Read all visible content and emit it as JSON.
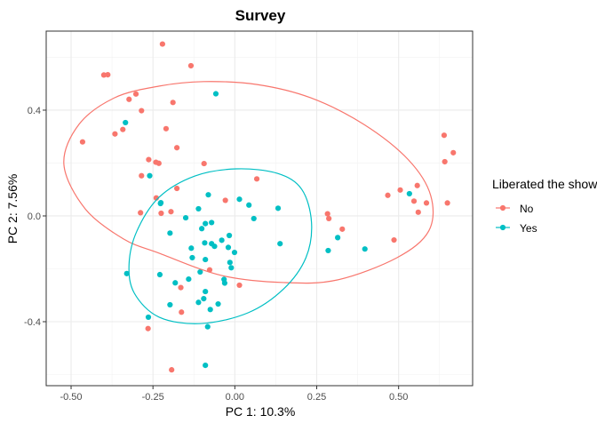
{
  "chart_data": {
    "type": "scatter",
    "title": "Survey",
    "xlabel": "PC 1: 10.3%",
    "ylabel": "PC 2: 7.56%",
    "xlim": [
      -0.576,
      0.726
    ],
    "ylim": [
      -0.642,
      0.699
    ],
    "x_ticks": [
      -0.5,
      -0.25,
      0,
      0.25,
      0.5
    ],
    "x_tick_labels": [
      "-0.50",
      "-0.25",
      "0.00",
      "0.25",
      "0.50"
    ],
    "y_ticks": [
      -0.4,
      0,
      0.4
    ],
    "y_tick_labels": [
      "-0.4",
      "0.0",
      "0.4"
    ],
    "grid": true,
    "legend": {
      "title": "Liberated the show?",
      "position": "right"
    },
    "series": [
      {
        "name": "No",
        "color": "#F8766D",
        "points": [
          [
            -0.221,
            0.65
          ],
          [
            -0.134,
            0.568
          ],
          [
            -0.4,
            0.533
          ],
          [
            -0.388,
            0.534
          ],
          [
            -0.302,
            0.461
          ],
          [
            -0.323,
            0.441
          ],
          [
            -0.189,
            0.429
          ],
          [
            -0.285,
            0.398
          ],
          [
            -0.21,
            0.33
          ],
          [
            -0.366,
            0.31
          ],
          [
            -0.342,
            0.327
          ],
          [
            -0.465,
            0.28
          ],
          [
            -0.177,
            0.258
          ],
          [
            -0.263,
            0.213
          ],
          [
            -0.241,
            0.203
          ],
          [
            -0.232,
            0.199
          ],
          [
            -0.094,
            0.198
          ],
          [
            -0.285,
            0.152
          ],
          [
            -0.177,
            0.104
          ],
          [
            0.067,
            0.14
          ],
          [
            -0.24,
            0.068
          ],
          [
            -0.029,
            0.059
          ],
          [
            -0.288,
            0.012
          ],
          [
            -0.225,
            0.01
          ],
          [
            -0.195,
            0.016
          ],
          [
            -0.077,
            -0.204
          ],
          [
            -0.165,
            -0.271
          ],
          [
            0.014,
            -0.262
          ],
          [
            -0.163,
            -0.364
          ],
          [
            -0.265,
            -0.426
          ],
          [
            -0.193,
            -0.582
          ],
          [
            0.639,
            0.305
          ],
          [
            0.667,
            0.239
          ],
          [
            0.641,
            0.205
          ],
          [
            0.557,
            0.115
          ],
          [
            0.505,
            0.098
          ],
          [
            0.467,
            0.078
          ],
          [
            0.547,
            0.056
          ],
          [
            0.585,
            0.049
          ],
          [
            0.649,
            0.049
          ],
          [
            0.56,
            0.014
          ],
          [
            0.283,
            0.008
          ],
          [
            0.287,
            -0.01
          ],
          [
            0.328,
            -0.05
          ],
          [
            0.486,
            -0.091
          ]
        ],
        "ellipse": [
          [
            -0.522,
            0.195
          ],
          [
            -0.476,
            0.346
          ],
          [
            -0.367,
            0.447
          ],
          [
            -0.231,
            0.491
          ],
          [
            -0.095,
            0.508
          ],
          [
            0.068,
            0.497
          ],
          [
            0.231,
            0.447
          ],
          [
            0.394,
            0.346
          ],
          [
            0.53,
            0.212
          ],
          [
            0.598,
            0.077
          ],
          [
            0.592,
            -0.057
          ],
          [
            0.495,
            -0.158
          ],
          [
            0.313,
            -0.242
          ],
          [
            0.149,
            -0.252
          ],
          [
            -0.041,
            -0.225
          ],
          [
            -0.231,
            -0.141
          ],
          [
            -0.34,
            -0.087
          ],
          [
            -0.457,
            0.027
          ]
        ]
      },
      {
        "name": "Yes",
        "color": "#00BFC4",
        "points": [
          [
            -0.058,
            0.462
          ],
          [
            -0.334,
            0.353
          ],
          [
            -0.26,
            0.152
          ],
          [
            -0.081,
            0.08
          ],
          [
            0.014,
            0.063
          ],
          [
            0.043,
            0.041
          ],
          [
            -0.227,
            0.047
          ],
          [
            -0.226,
            0.05
          ],
          [
            -0.111,
            0.027
          ],
          [
            0.132,
            0.029
          ],
          [
            -0.15,
            -0.007
          ],
          [
            0.058,
            -0.01
          ],
          [
            -0.09,
            -0.029
          ],
          [
            -0.071,
            -0.025
          ],
          [
            -0.101,
            -0.048
          ],
          [
            -0.198,
            -0.065
          ],
          [
            -0.017,
            -0.074
          ],
          [
            -0.04,
            -0.092
          ],
          [
            -0.092,
            -0.102
          ],
          [
            -0.071,
            -0.105
          ],
          [
            -0.062,
            -0.115
          ],
          [
            0.138,
            -0.105
          ],
          [
            -0.133,
            -0.122
          ],
          [
            -0.02,
            -0.119
          ],
          [
            -0.001,
            -0.138
          ],
          [
            -0.13,
            -0.158
          ],
          [
            -0.09,
            -0.165
          ],
          [
            -0.015,
            -0.176
          ],
          [
            -0.011,
            -0.196
          ],
          [
            -0.106,
            -0.212
          ],
          [
            -0.33,
            -0.218
          ],
          [
            -0.229,
            -0.222
          ],
          [
            -0.182,
            -0.253
          ],
          [
            -0.141,
            -0.239
          ],
          [
            -0.033,
            -0.24
          ],
          [
            -0.031,
            -0.254
          ],
          [
            -0.09,
            -0.286
          ],
          [
            -0.095,
            -0.313
          ],
          [
            -0.111,
            -0.327
          ],
          [
            -0.051,
            -0.333
          ],
          [
            -0.198,
            -0.336
          ],
          [
            -0.075,
            -0.354
          ],
          [
            -0.264,
            -0.383
          ],
          [
            -0.083,
            -0.419
          ],
          [
            -0.09,
            -0.565
          ],
          [
            0.533,
            0.084
          ],
          [
            0.314,
            -0.082
          ],
          [
            0.285,
            -0.131
          ],
          [
            0.397,
            -0.125
          ]
        ],
        "ellipse": [
          [
            0.005,
            0.178
          ],
          [
            0.13,
            0.161
          ],
          [
            0.204,
            0.101
          ],
          [
            0.234,
            -0.024
          ],
          [
            0.217,
            -0.158
          ],
          [
            0.149,
            -0.276
          ],
          [
            0.041,
            -0.366
          ],
          [
            -0.103,
            -0.407
          ],
          [
            -0.231,
            -0.383
          ],
          [
            -0.307,
            -0.292
          ],
          [
            -0.323,
            -0.182
          ],
          [
            -0.299,
            -0.057
          ],
          [
            -0.231,
            0.071
          ],
          [
            -0.122,
            0.151
          ]
        ]
      }
    ]
  }
}
